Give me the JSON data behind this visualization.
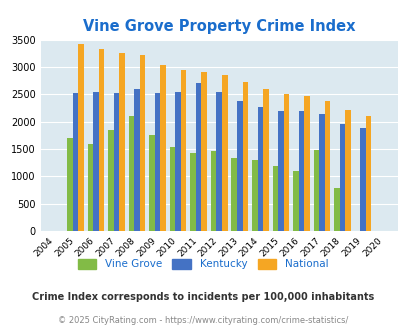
{
  "title": "Vine Grove Property Crime Index",
  "years": [
    2004,
    2005,
    2006,
    2007,
    2008,
    2009,
    2010,
    2011,
    2012,
    2013,
    2014,
    2015,
    2016,
    2017,
    2018,
    2019,
    2020
  ],
  "vine_grove": [
    0,
    1700,
    1600,
    1850,
    2100,
    1750,
    1530,
    1420,
    1460,
    1340,
    1300,
    1190,
    1100,
    1490,
    790,
    0,
    0
  ],
  "kentucky": [
    0,
    2530,
    2550,
    2530,
    2590,
    2520,
    2550,
    2700,
    2550,
    2380,
    2260,
    2190,
    2190,
    2140,
    1960,
    1880,
    0
  ],
  "national": [
    0,
    3420,
    3330,
    3250,
    3210,
    3040,
    2950,
    2900,
    2860,
    2720,
    2590,
    2500,
    2470,
    2380,
    2210,
    2100,
    0
  ],
  "vine_grove_color": "#82bb46",
  "kentucky_color": "#4472c4",
  "national_color": "#f5a623",
  "bg_color": "#dce9f0",
  "title_color": "#1a6dcc",
  "ylabel_max": 3500,
  "yticks": [
    0,
    500,
    1000,
    1500,
    2000,
    2500,
    3000,
    3500
  ],
  "footnote1": "Crime Index corresponds to incidents per 100,000 inhabitants",
  "footnote2": "© 2025 CityRating.com - https://www.cityrating.com/crime-statistics/",
  "legend_labels": [
    "Vine Grove",
    "Kentucky",
    "National"
  ]
}
